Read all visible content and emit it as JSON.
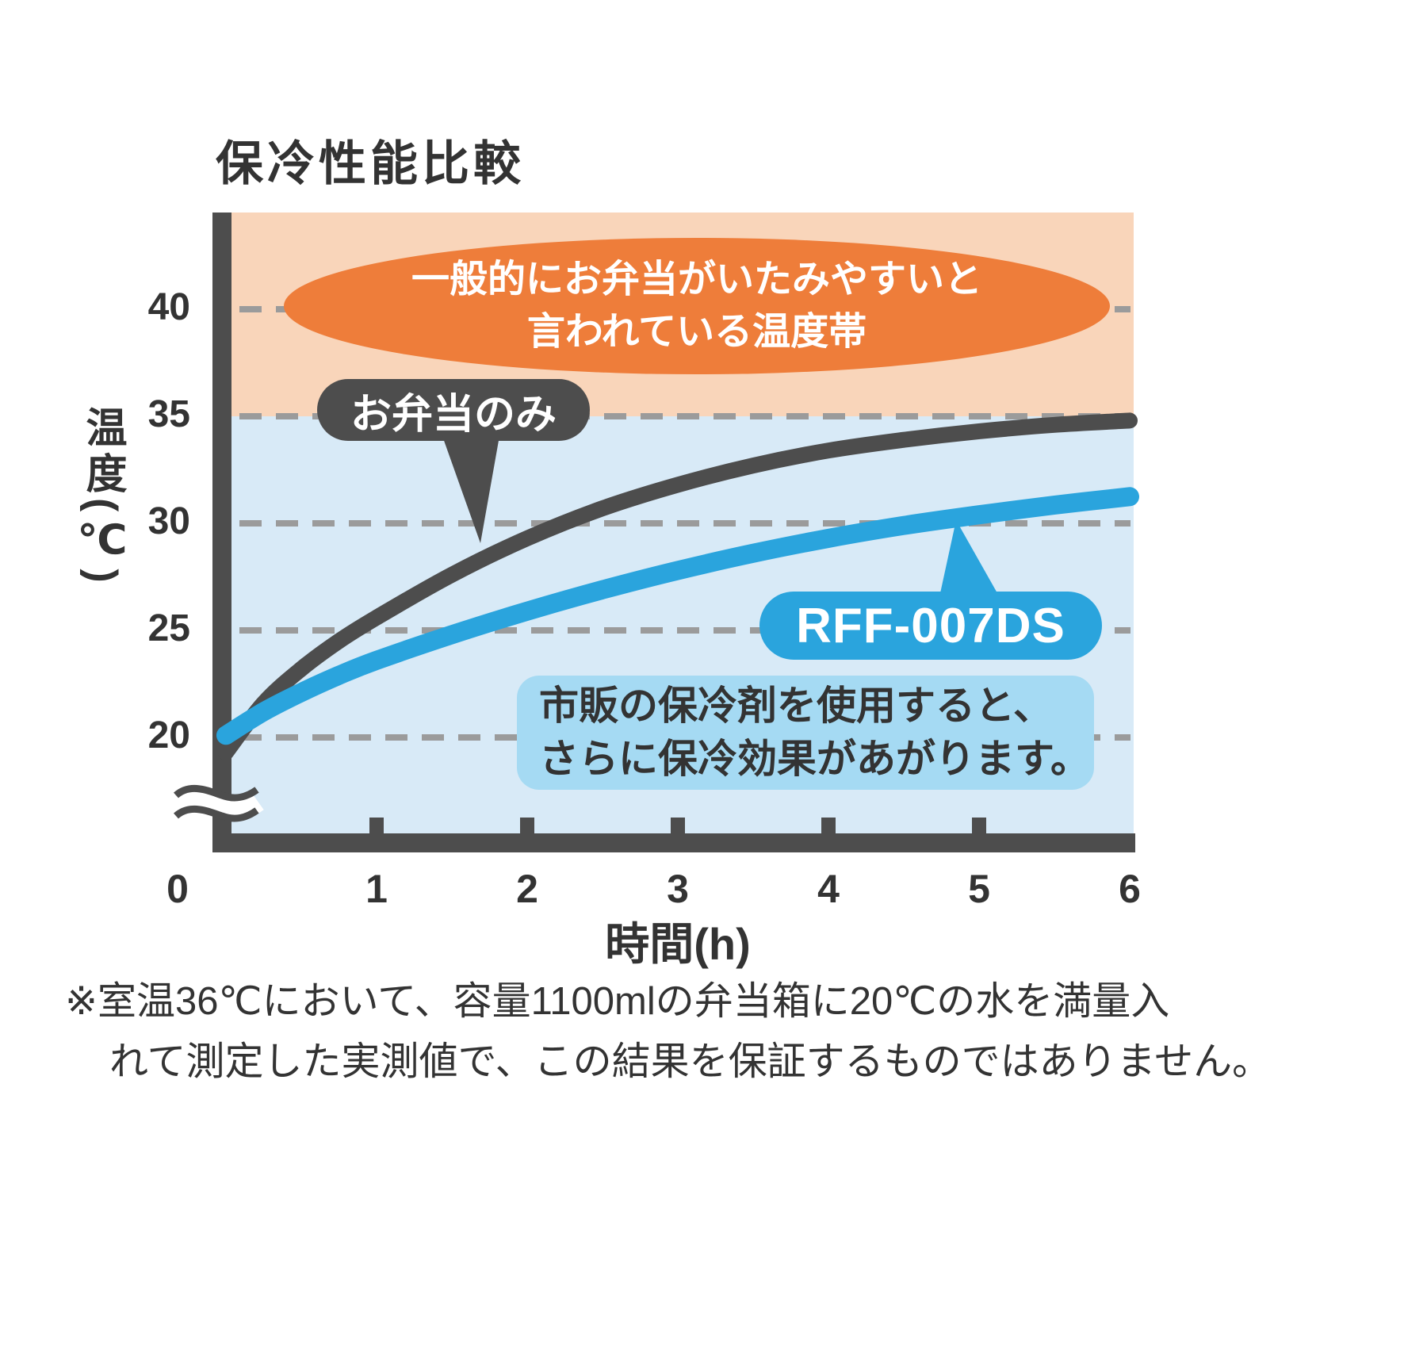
{
  "title": "保冷性能比較",
  "axes": {
    "y_label": "温度(℃)",
    "x_label": "時間(h)",
    "x_tick_labels": [
      "0",
      "1",
      "2",
      "3",
      "4",
      "5",
      "6"
    ],
    "y_tick_labels": [
      "40",
      "35",
      "30",
      "25",
      "20"
    ]
  },
  "callouts": {
    "danger_line1": "一般的にお弁当がいたみやすいと",
    "danger_line2": "言われている温度帯",
    "bento_only": "お弁当のみ",
    "product": "RFF-007DS",
    "note_line1": "市販の保冷剤を使用すると、",
    "note_line2": "さらに保冷効果があがります。"
  },
  "footnote": {
    "line1": "※室温36℃において、容量1100mlの弁当箱に20℃の水を満量入",
    "line2": "れて測定した実測値で、この結果を保証するものではありません。"
  },
  "colors": {
    "dark": "#4d4d4d",
    "blue": "#2aa4dd",
    "orange_band": "#f9d5ba",
    "blue_band": "#d8eaf7",
    "orange_ellipse": "#ee7d3a",
    "note_box": "#a5daf3",
    "gridline": "#9b9b9b",
    "text": "#333333"
  },
  "chart_data": {
    "type": "line",
    "title": "保冷性能比較",
    "xlabel": "時間(h)",
    "ylabel": "温度(℃)",
    "x_range": [
      0,
      6
    ],
    "y_ticks": [
      20,
      25,
      30,
      35,
      40
    ],
    "y_axis_break_below": 20,
    "grid": "horizontal-dashed",
    "legend_position": "inline-callouts",
    "danger_zone": {
      "above_temp_c": 35,
      "label": "一般的にお弁当がいたみやすいと言われている温度帯"
    },
    "annotation": "市販の保冷剤を使用すると、さらに保冷効果があがります。",
    "series": [
      {
        "name": "お弁当のみ",
        "color": "#4d4d4d",
        "points": [
          [
            0,
            19.3
          ],
          [
            0.25,
            21.6
          ],
          [
            0.5,
            23.2
          ],
          [
            0.75,
            24.5
          ],
          [
            1,
            25.6
          ],
          [
            1.5,
            27.6
          ],
          [
            2,
            29.3
          ],
          [
            2.5,
            30.7
          ],
          [
            3,
            31.8
          ],
          [
            3.5,
            32.7
          ],
          [
            4,
            33.4
          ],
          [
            4.5,
            33.9
          ],
          [
            5,
            34.3
          ],
          [
            5.5,
            34.6
          ],
          [
            6,
            34.8
          ]
        ]
      },
      {
        "name": "RFF-007DS",
        "color": "#2aa4dd",
        "points": [
          [
            0,
            20.1
          ],
          [
            0.25,
            21.2
          ],
          [
            0.5,
            22.1
          ],
          [
            0.75,
            22.9
          ],
          [
            1,
            23.6
          ],
          [
            1.5,
            24.8
          ],
          [
            2,
            25.9
          ],
          [
            2.5,
            26.9
          ],
          [
            3,
            27.8
          ],
          [
            3.5,
            28.6
          ],
          [
            4,
            29.3
          ],
          [
            4.5,
            29.9
          ],
          [
            5,
            30.4
          ],
          [
            5.5,
            30.85
          ],
          [
            6,
            31.25
          ]
        ]
      }
    ]
  }
}
